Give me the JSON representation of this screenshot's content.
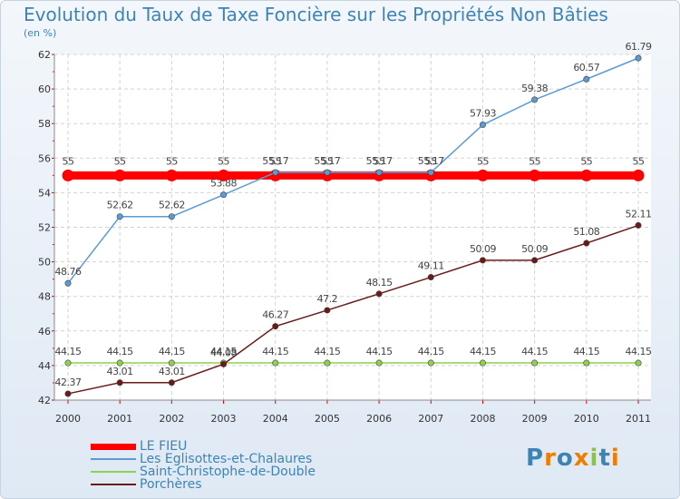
{
  "title": "Evolution du Taux de Taxe Foncière sur les Propriétés Non Bâties",
  "subtitle": "(en %)",
  "logo": "Proxiti",
  "chart_data": {
    "type": "line",
    "x": [
      "2000",
      "2001",
      "2002",
      "2003",
      "2004",
      "2005",
      "2006",
      "2007",
      "2008",
      "2009",
      "2010",
      "2011"
    ],
    "ylim": [
      42,
      62
    ],
    "yticks": [
      42,
      44,
      46,
      48,
      50,
      52,
      54,
      56,
      58,
      60,
      62
    ],
    "grid": true,
    "legend_position": "bottom-left",
    "series": [
      {
        "name": "LE FIEU",
        "color": "#ff0000",
        "values": [
          55,
          55,
          55,
          55,
          55,
          55,
          55,
          55,
          55,
          55,
          55,
          55
        ],
        "labels": [
          "55",
          "55",
          "55",
          "55",
          "55",
          "55",
          "55",
          "55",
          "55",
          "55",
          "55",
          "55"
        ]
      },
      {
        "name": "Les Eglisottes-et-Chalaures",
        "color": "#5b9bd5",
        "values": [
          48.76,
          52.62,
          52.62,
          53.88,
          55.17,
          55.17,
          55.17,
          55.17,
          57.93,
          59.38,
          60.57,
          61.79
        ],
        "labels": [
          "48.76",
          "52.62",
          "52.62",
          "53.88",
          "55.17",
          "55.17",
          "55.17",
          "55.17",
          "57.93",
          "59.38",
          "60.57",
          "61.79"
        ]
      },
      {
        "name": "Saint-Christophe-de-Double",
        "color": "#8fd14f",
        "values": [
          44.15,
          44.15,
          44.15,
          44.15,
          44.15,
          44.15,
          44.15,
          44.15,
          44.15,
          44.15,
          44.15,
          44.15
        ],
        "labels": [
          "44.15",
          "44.15",
          "44.15",
          "44.15",
          "44.15",
          "44.15",
          "44.15",
          "44.15",
          "44.15",
          "44.15",
          "44.15",
          "44.15"
        ]
      },
      {
        "name": "Porchères",
        "color": "#6b1a1a",
        "values": [
          42.37,
          43.01,
          43.01,
          44.08,
          46.27,
          47.2,
          48.15,
          49.11,
          50.09,
          50.09,
          51.08,
          52.11
        ],
        "labels": [
          "42.37",
          "43.01",
          "43.01",
          "44.08",
          "46.27",
          "47.2",
          "48.15",
          "49.11",
          "50.09",
          "50.09",
          "51.08",
          "52.11"
        ]
      }
    ]
  }
}
